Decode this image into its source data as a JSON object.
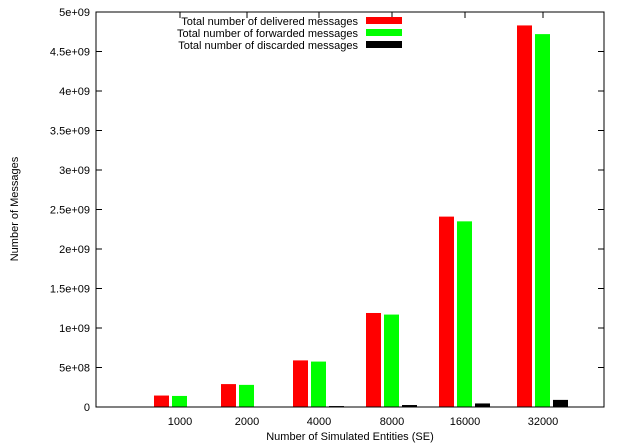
{
  "chart_data": {
    "type": "bar",
    "xlabel": "Number of Simulated Entities (SE)",
    "ylabel": "Number of Messages",
    "categories": [
      "1000",
      "2000",
      "4000",
      "8000",
      "16000",
      "32000"
    ],
    "ylim": [
      0,
      5000000000
    ],
    "yticks": [
      {
        "value": 0,
        "label": "0"
      },
      {
        "value": 500000000,
        "label": "5e+08"
      },
      {
        "value": 1000000000,
        "label": "1e+09"
      },
      {
        "value": 1500000000,
        "label": "1.5e+09"
      },
      {
        "value": 2000000000,
        "label": "2e+09"
      },
      {
        "value": 2500000000,
        "label": "2.5e+09"
      },
      {
        "value": 3000000000,
        "label": "3e+09"
      },
      {
        "value": 3500000000,
        "label": "3.5e+09"
      },
      {
        "value": 4000000000,
        "label": "4e+09"
      },
      {
        "value": 4500000000,
        "label": "4.5e+09"
      },
      {
        "value": 5000000000,
        "label": "5e+09"
      }
    ],
    "legend_position": "top-center",
    "grid": false,
    "series": [
      {
        "name": "Total number of delivered messages",
        "color": "#ff0000",
        "values": [
          145000000,
          290000000,
          590000000,
          1190000000,
          2410000000,
          4830000000
        ]
      },
      {
        "name": "Total number of forwarded messages",
        "color": "#00ff00",
        "values": [
          140000000,
          280000000,
          575000000,
          1170000000,
          2350000000,
          4720000000
        ]
      },
      {
        "name": "Total number of discarded messages",
        "color": "#000000",
        "values": [
          3000000,
          6000000,
          12000000,
          25000000,
          45000000,
          90000000
        ]
      }
    ]
  }
}
